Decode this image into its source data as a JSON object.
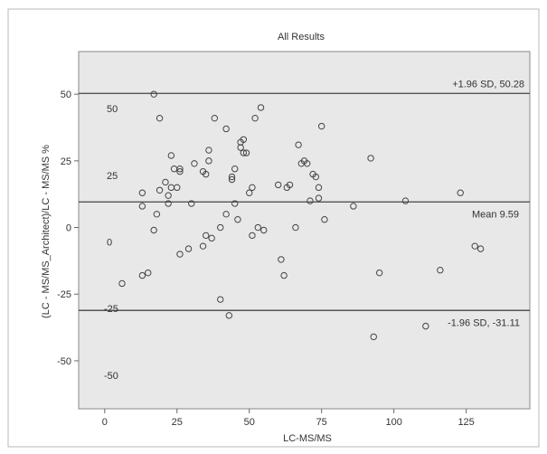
{
  "chart_data": {
    "type": "scatter",
    "title": "All Results",
    "xlabel": "LC-MS/MS",
    "ylabel": "(LC - MS/MS_Architect)/LC - MS/MS %",
    "xlim": [
      -9,
      147
    ],
    "ylim": [
      -68,
      66
    ],
    "xticks": [
      0,
      25,
      50,
      75,
      100,
      125
    ],
    "yticks": [
      50,
      25,
      0,
      -25,
      -50
    ],
    "inner_labels": [
      {
        "text": "50",
        "value": 50
      },
      {
        "text": "25",
        "value": 25
      },
      {
        "text": "0",
        "value": 0
      },
      {
        "text": "-25",
        "value": -25
      },
      {
        "text": "-50",
        "value": -50
      }
    ],
    "reference_lines": [
      {
        "name": "upper-loa",
        "label": "+1.96 SD, 50.28",
        "value": 50.28
      },
      {
        "name": "mean",
        "label": "Mean 9.59",
        "value": 9.59
      },
      {
        "name": "lower-loa",
        "label": "-1.96 SD, -31.11",
        "value": -31.11
      }
    ],
    "grid": false,
    "colors": {
      "plot_bg": "#e8e8e8",
      "marker": "#444444",
      "line": "#555555"
    },
    "points": [
      [
        6,
        -21
      ],
      [
        13,
        -18
      ],
      [
        13,
        13
      ],
      [
        13,
        8
      ],
      [
        15,
        -17
      ],
      [
        17,
        50
      ],
      [
        17,
        -1
      ],
      [
        18,
        5
      ],
      [
        19,
        14
      ],
      [
        19,
        41
      ],
      [
        21,
        17
      ],
      [
        22,
        12
      ],
      [
        22,
        9
      ],
      [
        23,
        27
      ],
      [
        23,
        15
      ],
      [
        24,
        22
      ],
      [
        25,
        15
      ],
      [
        26,
        22
      ],
      [
        26,
        21
      ],
      [
        26,
        -10
      ],
      [
        29,
        -8
      ],
      [
        30,
        9
      ],
      [
        31,
        24
      ],
      [
        34,
        21
      ],
      [
        34,
        -7
      ],
      [
        35,
        20
      ],
      [
        35,
        -3
      ],
      [
        36,
        25
      ],
      [
        36,
        29
      ],
      [
        37,
        -4
      ],
      [
        38,
        41
      ],
      [
        40,
        -27
      ],
      [
        40,
        0
      ],
      [
        42,
        37
      ],
      [
        42,
        5
      ],
      [
        43,
        -33
      ],
      [
        44,
        18
      ],
      [
        44,
        19
      ],
      [
        45,
        22
      ],
      [
        45,
        9
      ],
      [
        46,
        3
      ],
      [
        47,
        30
      ],
      [
        47,
        32
      ],
      [
        48,
        28
      ],
      [
        48,
        33
      ],
      [
        49,
        28
      ],
      [
        50,
        13
      ],
      [
        51,
        15
      ],
      [
        51,
        -3
      ],
      [
        52,
        41
      ],
      [
        53,
        0
      ],
      [
        54,
        45
      ],
      [
        55,
        -1
      ],
      [
        60,
        16
      ],
      [
        61,
        -12
      ],
      [
        62,
        -18
      ],
      [
        63,
        15
      ],
      [
        64,
        16
      ],
      [
        66,
        0
      ],
      [
        67,
        31
      ],
      [
        68,
        24
      ],
      [
        69,
        25
      ],
      [
        70,
        24
      ],
      [
        71,
        10
      ],
      [
        72,
        20
      ],
      [
        73,
        19
      ],
      [
        74,
        15
      ],
      [
        74,
        11
      ],
      [
        75,
        38
      ],
      [
        76,
        3
      ],
      [
        86,
        8
      ],
      [
        92,
        26
      ],
      [
        93,
        -41
      ],
      [
        95,
        -17
      ],
      [
        104,
        10
      ],
      [
        111,
        -37
      ],
      [
        116,
        -16
      ],
      [
        123,
        13
      ],
      [
        128,
        -7
      ],
      [
        130,
        -8
      ]
    ]
  }
}
